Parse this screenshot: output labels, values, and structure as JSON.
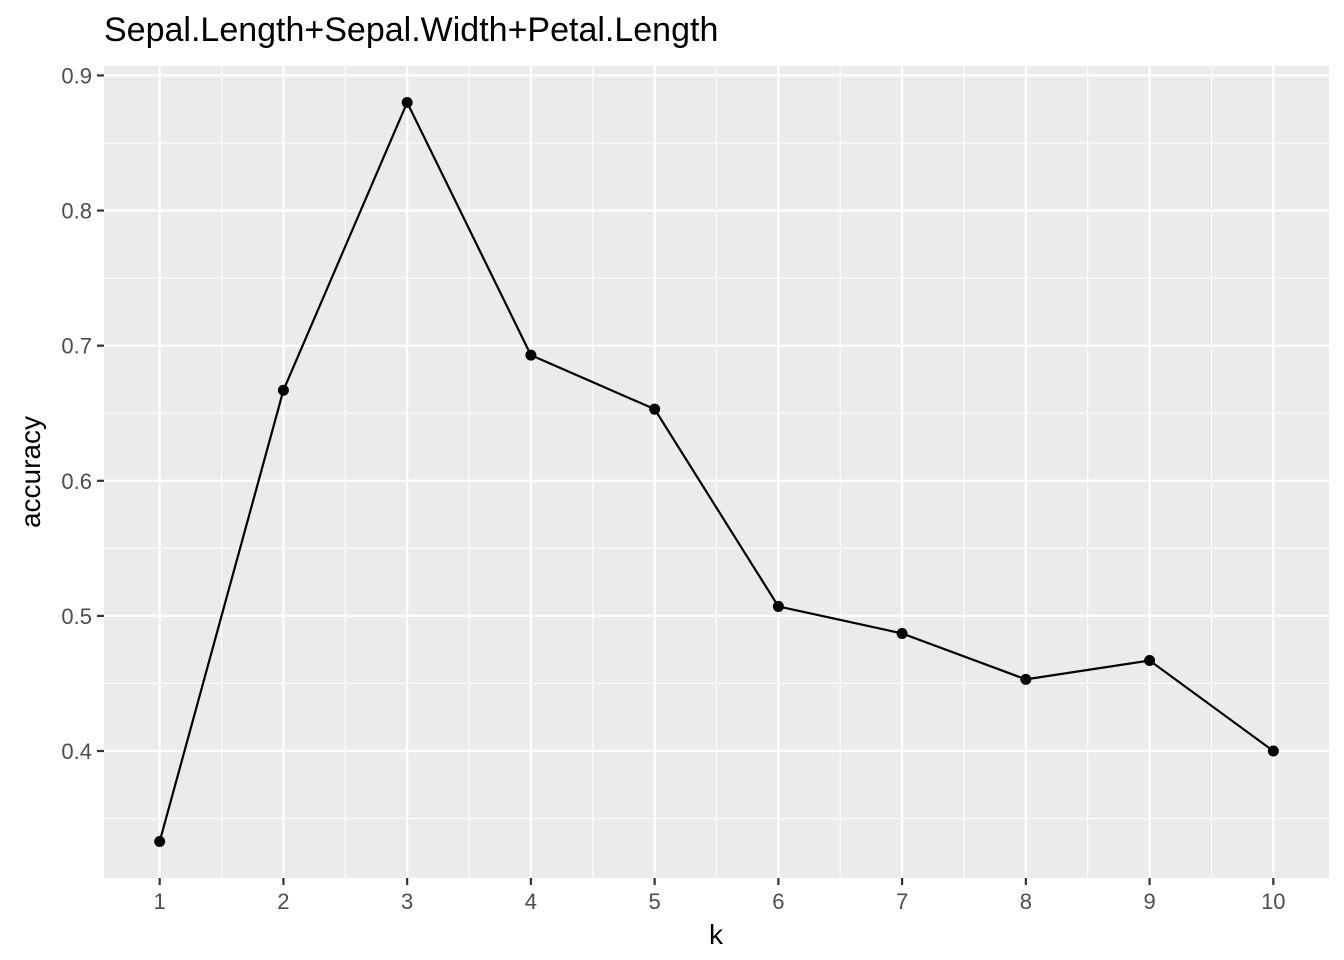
{
  "chart_data": {
    "type": "line",
    "title": "Sepal.Length+Sepal.Width+Petal.Length",
    "xlabel": "k",
    "ylabel": "accuracy",
    "x": [
      1,
      2,
      3,
      4,
      5,
      6,
      7,
      8,
      9,
      10
    ],
    "series": [
      {
        "values": [
          0.333,
          0.667,
          0.88,
          0.693,
          0.653,
          0.507,
          0.487,
          0.453,
          0.467,
          0.4
        ]
      }
    ],
    "x_ticks": [
      "1",
      "2",
      "3",
      "4",
      "5",
      "6",
      "7",
      "8",
      "9",
      "10"
    ],
    "y_ticks": [
      "0.4",
      "0.5",
      "0.6",
      "0.7",
      "0.8",
      "0.9"
    ],
    "xlim": [
      0.55,
      10.45
    ],
    "ylim": [
      0.306,
      0.907
    ],
    "grid": true,
    "colors": {
      "panel": "#ebebeb",
      "grid": "#ffffff",
      "line": "#000000",
      "tick_text": "#4d4d4d"
    }
  }
}
